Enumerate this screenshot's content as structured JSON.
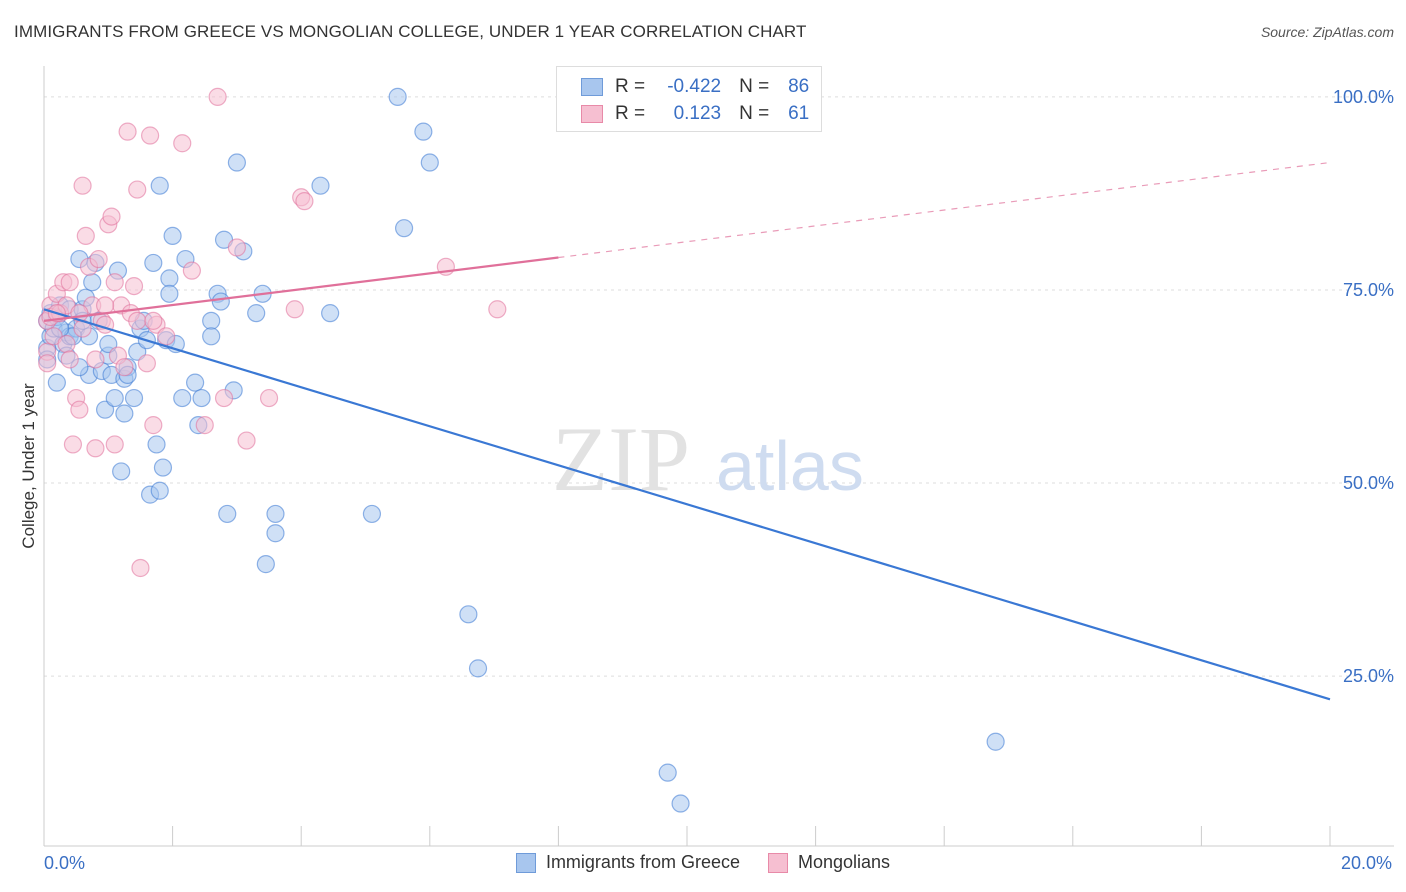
{
  "title": "IMMIGRANTS FROM GREECE VS MONGOLIAN COLLEGE, UNDER 1 YEAR CORRELATION CHART",
  "source": "Source: ZipAtlas.com",
  "watermark": {
    "zip": "ZIP",
    "atlas": "atlas"
  },
  "legend_top": {
    "rows": [
      {
        "r_label": "R =",
        "r_value": "-0.422",
        "n_label": "N =",
        "n_value": "86",
        "color": "#a8c6ee",
        "border": "#6f9bd9"
      },
      {
        "r_label": "R =",
        "r_value": "0.123",
        "n_label": "N =",
        "n_value": "61",
        "color": "#f6bfd1",
        "border": "#e88aa8"
      }
    ]
  },
  "legend_bottom": [
    {
      "label": "Immigrants from Greece",
      "color": "#a8c6ee",
      "border": "#6f9bd9"
    },
    {
      "label": "Mongolians",
      "color": "#f6bfd1",
      "border": "#e88aa8"
    }
  ],
  "chart_data": {
    "type": "scatter",
    "title": "IMMIGRANTS FROM GREECE VS MONGOLIAN COLLEGE, UNDER 1 YEAR CORRELATION CHART",
    "xlabel": "",
    "ylabel": "College, Under 1 year",
    "xlim": [
      0,
      20
    ],
    "ylim": [
      3,
      104
    ],
    "x_tick_labels": [
      "0.0%",
      "20.0%"
    ],
    "y_ticks": [
      25,
      50,
      75,
      100
    ],
    "y_tick_labels": [
      "25.0%",
      "50.0%",
      "75.0%",
      "100.0%"
    ],
    "grid": true,
    "series": [
      {
        "name": "Immigrants from Greece",
        "color": "#3a78d4",
        "fill": "#a8c6ee",
        "trend": {
          "x": [
            0,
            20
          ],
          "y": [
            72.5,
            22.0
          ],
          "dashed_from": null
        },
        "points": [
          [
            0.05,
            67.5
          ],
          [
            0.05,
            71.0
          ],
          [
            0.05,
            66.0
          ],
          [
            0.1,
            69.0
          ],
          [
            0.1,
            72.0
          ],
          [
            0.15,
            70.0
          ],
          [
            0.2,
            63.0
          ],
          [
            0.2,
            71.5
          ],
          [
            0.25,
            73.0
          ],
          [
            0.3,
            68.0
          ],
          [
            0.35,
            66.5
          ],
          [
            0.35,
            69.5
          ],
          [
            0.4,
            72.5
          ],
          [
            0.4,
            69.0
          ],
          [
            0.5,
            70.0
          ],
          [
            0.55,
            79.0
          ],
          [
            0.6,
            72.5
          ],
          [
            0.65,
            74.0
          ],
          [
            0.7,
            69.0
          ],
          [
            0.7,
            64.0
          ],
          [
            0.75,
            76.0
          ],
          [
            0.8,
            78.5
          ],
          [
            0.85,
            71.0
          ],
          [
            0.9,
            64.5
          ],
          [
            0.95,
            59.5
          ],
          [
            1.0,
            66.5
          ],
          [
            1.05,
            64.0
          ],
          [
            1.1,
            61.0
          ],
          [
            1.15,
            77.5
          ],
          [
            1.2,
            51.5
          ],
          [
            1.25,
            59.0
          ],
          [
            1.25,
            63.5
          ],
          [
            1.3,
            65.0
          ],
          [
            1.4,
            61.0
          ],
          [
            1.45,
            67.0
          ],
          [
            1.5,
            70.0
          ],
          [
            1.55,
            71.0
          ],
          [
            1.6,
            68.5
          ],
          [
            1.65,
            48.5
          ],
          [
            1.7,
            78.5
          ],
          [
            1.75,
            55.0
          ],
          [
            1.8,
            49.0
          ],
          [
            1.8,
            88.5
          ],
          [
            1.85,
            52.0
          ],
          [
            1.9,
            68.5
          ],
          [
            1.95,
            76.5
          ],
          [
            1.95,
            74.5
          ],
          [
            2.0,
            82.0
          ],
          [
            2.05,
            68.0
          ],
          [
            2.15,
            61.0
          ],
          [
            2.2,
            79.0
          ],
          [
            2.35,
            63.0
          ],
          [
            2.4,
            57.5
          ],
          [
            2.45,
            61.0
          ],
          [
            2.6,
            71.0
          ],
          [
            2.6,
            69.0
          ],
          [
            2.7,
            74.5
          ],
          [
            2.75,
            73.5
          ],
          [
            2.8,
            81.5
          ],
          [
            2.85,
            46.0
          ],
          [
            2.95,
            62.0
          ],
          [
            3.0,
            91.5
          ],
          [
            3.1,
            80.0
          ],
          [
            3.3,
            72.0
          ],
          [
            3.4,
            74.5
          ],
          [
            3.6,
            46.0
          ],
          [
            3.6,
            43.5
          ],
          [
            4.3,
            88.5
          ],
          [
            4.45,
            72.0
          ],
          [
            5.1,
            46.0
          ],
          [
            5.5,
            100.0
          ],
          [
            5.6,
            83.0
          ],
          [
            5.9,
            95.5
          ],
          [
            6.0,
            91.5
          ],
          [
            6.6,
            33.0
          ],
          [
            6.75,
            26.0
          ],
          [
            9.7,
            12.5
          ],
          [
            9.9,
            8.5
          ],
          [
            14.8,
            16.5
          ],
          [
            3.45,
            39.5
          ],
          [
            0.45,
            69.0
          ],
          [
            0.6,
            71.0
          ],
          [
            1.0,
            68.0
          ],
          [
            1.3,
            64.0
          ],
          [
            0.25,
            70.0
          ],
          [
            0.55,
            65.0
          ]
        ]
      },
      {
        "name": "Mongolians",
        "color": "#e0709a",
        "fill": "#f6bfd1",
        "trend": {
          "x": [
            0,
            20
          ],
          "y": [
            71.0,
            91.5
          ],
          "dashed_from": 8.0
        },
        "points": [
          [
            0.05,
            67.0
          ],
          [
            0.05,
            71.0
          ],
          [
            0.05,
            65.5
          ],
          [
            0.1,
            73.0
          ],
          [
            0.1,
            71.5
          ],
          [
            0.15,
            69.0
          ],
          [
            0.2,
            74.5
          ],
          [
            0.25,
            72.0
          ],
          [
            0.3,
            76.0
          ],
          [
            0.35,
            73.0
          ],
          [
            0.4,
            76.0
          ],
          [
            0.45,
            55.0
          ],
          [
            0.5,
            61.0
          ],
          [
            0.55,
            59.5
          ],
          [
            0.6,
            88.5
          ],
          [
            0.65,
            82.0
          ],
          [
            0.7,
            78.0
          ],
          [
            0.75,
            73.0
          ],
          [
            0.8,
            54.5
          ],
          [
            0.85,
            79.0
          ],
          [
            0.9,
            71.0
          ],
          [
            0.95,
            70.5
          ],
          [
            1.0,
            83.5
          ],
          [
            1.05,
            84.5
          ],
          [
            1.1,
            55.0
          ],
          [
            1.15,
            66.5
          ],
          [
            1.2,
            73.0
          ],
          [
            1.25,
            65.0
          ],
          [
            1.3,
            95.5
          ],
          [
            1.35,
            72.0
          ],
          [
            1.4,
            75.5
          ],
          [
            1.45,
            88.0
          ],
          [
            1.5,
            39.0
          ],
          [
            1.6,
            65.5
          ],
          [
            1.65,
            95.0
          ],
          [
            1.7,
            57.5
          ],
          [
            1.75,
            70.5
          ],
          [
            1.9,
            69.0
          ],
          [
            2.15,
            94.0
          ],
          [
            2.3,
            77.5
          ],
          [
            2.5,
            57.5
          ],
          [
            2.7,
            100.0
          ],
          [
            2.8,
            61.0
          ],
          [
            3.0,
            80.5
          ],
          [
            3.15,
            55.5
          ],
          [
            3.5,
            61.0
          ],
          [
            3.9,
            72.5
          ],
          [
            4.0,
            87.0
          ],
          [
            4.05,
            86.5
          ],
          [
            6.25,
            78.0
          ],
          [
            7.05,
            72.5
          ],
          [
            0.55,
            72.0
          ],
          [
            0.95,
            73.0
          ],
          [
            1.45,
            71.0
          ],
          [
            0.35,
            68.0
          ],
          [
            0.8,
            66.0
          ],
          [
            1.1,
            76.0
          ],
          [
            0.6,
            70.0
          ],
          [
            1.7,
            71.0
          ],
          [
            0.2,
            72.0
          ],
          [
            0.4,
            66.0
          ]
        ]
      }
    ]
  }
}
